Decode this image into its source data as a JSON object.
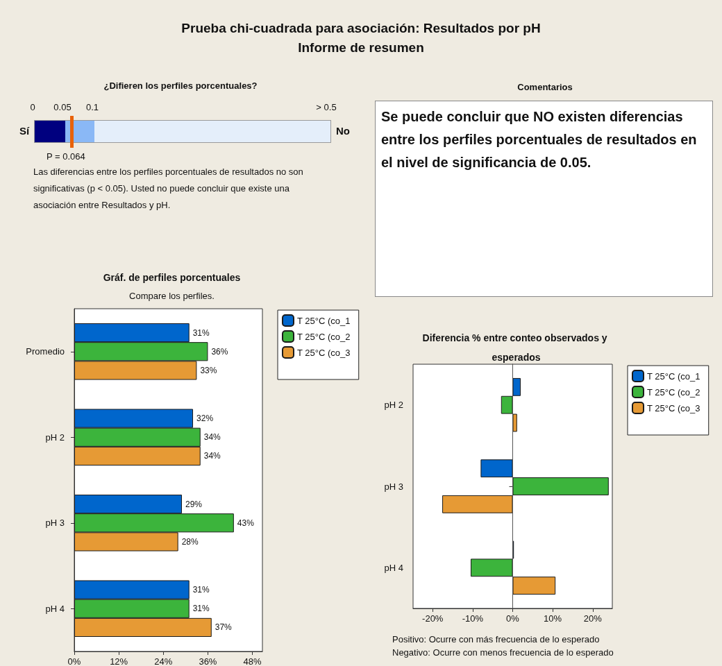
{
  "chart_data": [
    {
      "type": "other",
      "title": "Prueba chi-cuadrada para asociación: Resultados por pH",
      "subtitle": "Informe de resumen",
      "annotations": [
        "¿Difieren los perfiles porcentuales?",
        "0",
        "0.05",
        "0.1",
        "> 0.5",
        "Sí",
        "No",
        "P = 0.064",
        "Las diferencias entre los perfiles porcentuales de resultados no son significativas (p < 0.05). Usted no puede concluir que existe una asociación entre Resultados y pH."
      ]
    },
    {
      "type": "other",
      "title": "Comentarios",
      "annotations": [
        "Se puede concluir que NO existen diferencias entre los perfiles porcentuales de resultados en el nivel de significancia de 0.05."
      ]
    },
    {
      "type": "bar",
      "orientation": "horizontal",
      "title": "Gráf. de perfiles porcentuales",
      "subtitle": "Compare los perfiles.",
      "categories": [
        "Promedio",
        "pH 2",
        "pH 3",
        "pH 4"
      ],
      "series": [
        {
          "name": "T 25°C (co_1",
          "color": "#0066cc",
          "values": [
            31,
            32,
            29,
            31
          ],
          "value_labels": [
            "31%",
            "32%",
            "29%",
            "31%"
          ]
        },
        {
          "name": "T 25°C (co_2",
          "color": "#3cb43c",
          "values": [
            36,
            34,
            43,
            31
          ],
          "value_labels": [
            "36%",
            "34%",
            "43%",
            "31%"
          ]
        },
        {
          "name": "T 25°C (co_3",
          "color": "#e69a35",
          "values": [
            33,
            34,
            28,
            37
          ],
          "value_labels": [
            "33%",
            "34%",
            "28%",
            "37%"
          ]
        }
      ],
      "xlim": [
        0,
        50.7
      ],
      "xticks": [
        {
          "value": 0,
          "label": "0%"
        },
        {
          "value": 12,
          "label": "12%"
        },
        {
          "value": 24,
          "label": "24%"
        },
        {
          "value": 36,
          "label": "36%"
        },
        {
          "value": 48,
          "label": "48%"
        }
      ],
      "grid": false,
      "legend": "right"
    },
    {
      "type": "bar",
      "orientation": "horizontal",
      "title": "Diferencia % entre conteo observados y esperados",
      "categories": [
        "pH 2",
        "pH 3",
        "pH 4"
      ],
      "series": [
        {
          "name": "T 25°C (co_1",
          "color": "#0066cc",
          "values": [
            2.0,
            -8.0,
            0.3
          ]
        },
        {
          "name": "T 25°C (co_2",
          "color": "#3cb43c",
          "values": [
            -2.9,
            24.0,
            -10.5
          ]
        },
        {
          "name": "T 25°C (co_3",
          "color": "#e69a35",
          "values": [
            1.1,
            -17.6,
            10.7
          ]
        }
      ],
      "xlim": [
        -24.9,
        24.9
      ],
      "xticks": [
        {
          "value": -20,
          "label": "-20%"
        },
        {
          "value": -10,
          "label": "-10%"
        },
        {
          "value": 0,
          "label": "0%"
        },
        {
          "value": 10,
          "label": "10%"
        },
        {
          "value": 20,
          "label": "20%"
        }
      ],
      "ref_lines": [
        {
          "axis": "x",
          "value": 0,
          "color": "#555555"
        }
      ],
      "annotations": [
        "Positivo: Ocurre con más frecuencia de lo esperado",
        "Negativo: Ocurre con menos frecuencia de lo esperado"
      ],
      "grid": false,
      "legend": "right"
    }
  ]
}
